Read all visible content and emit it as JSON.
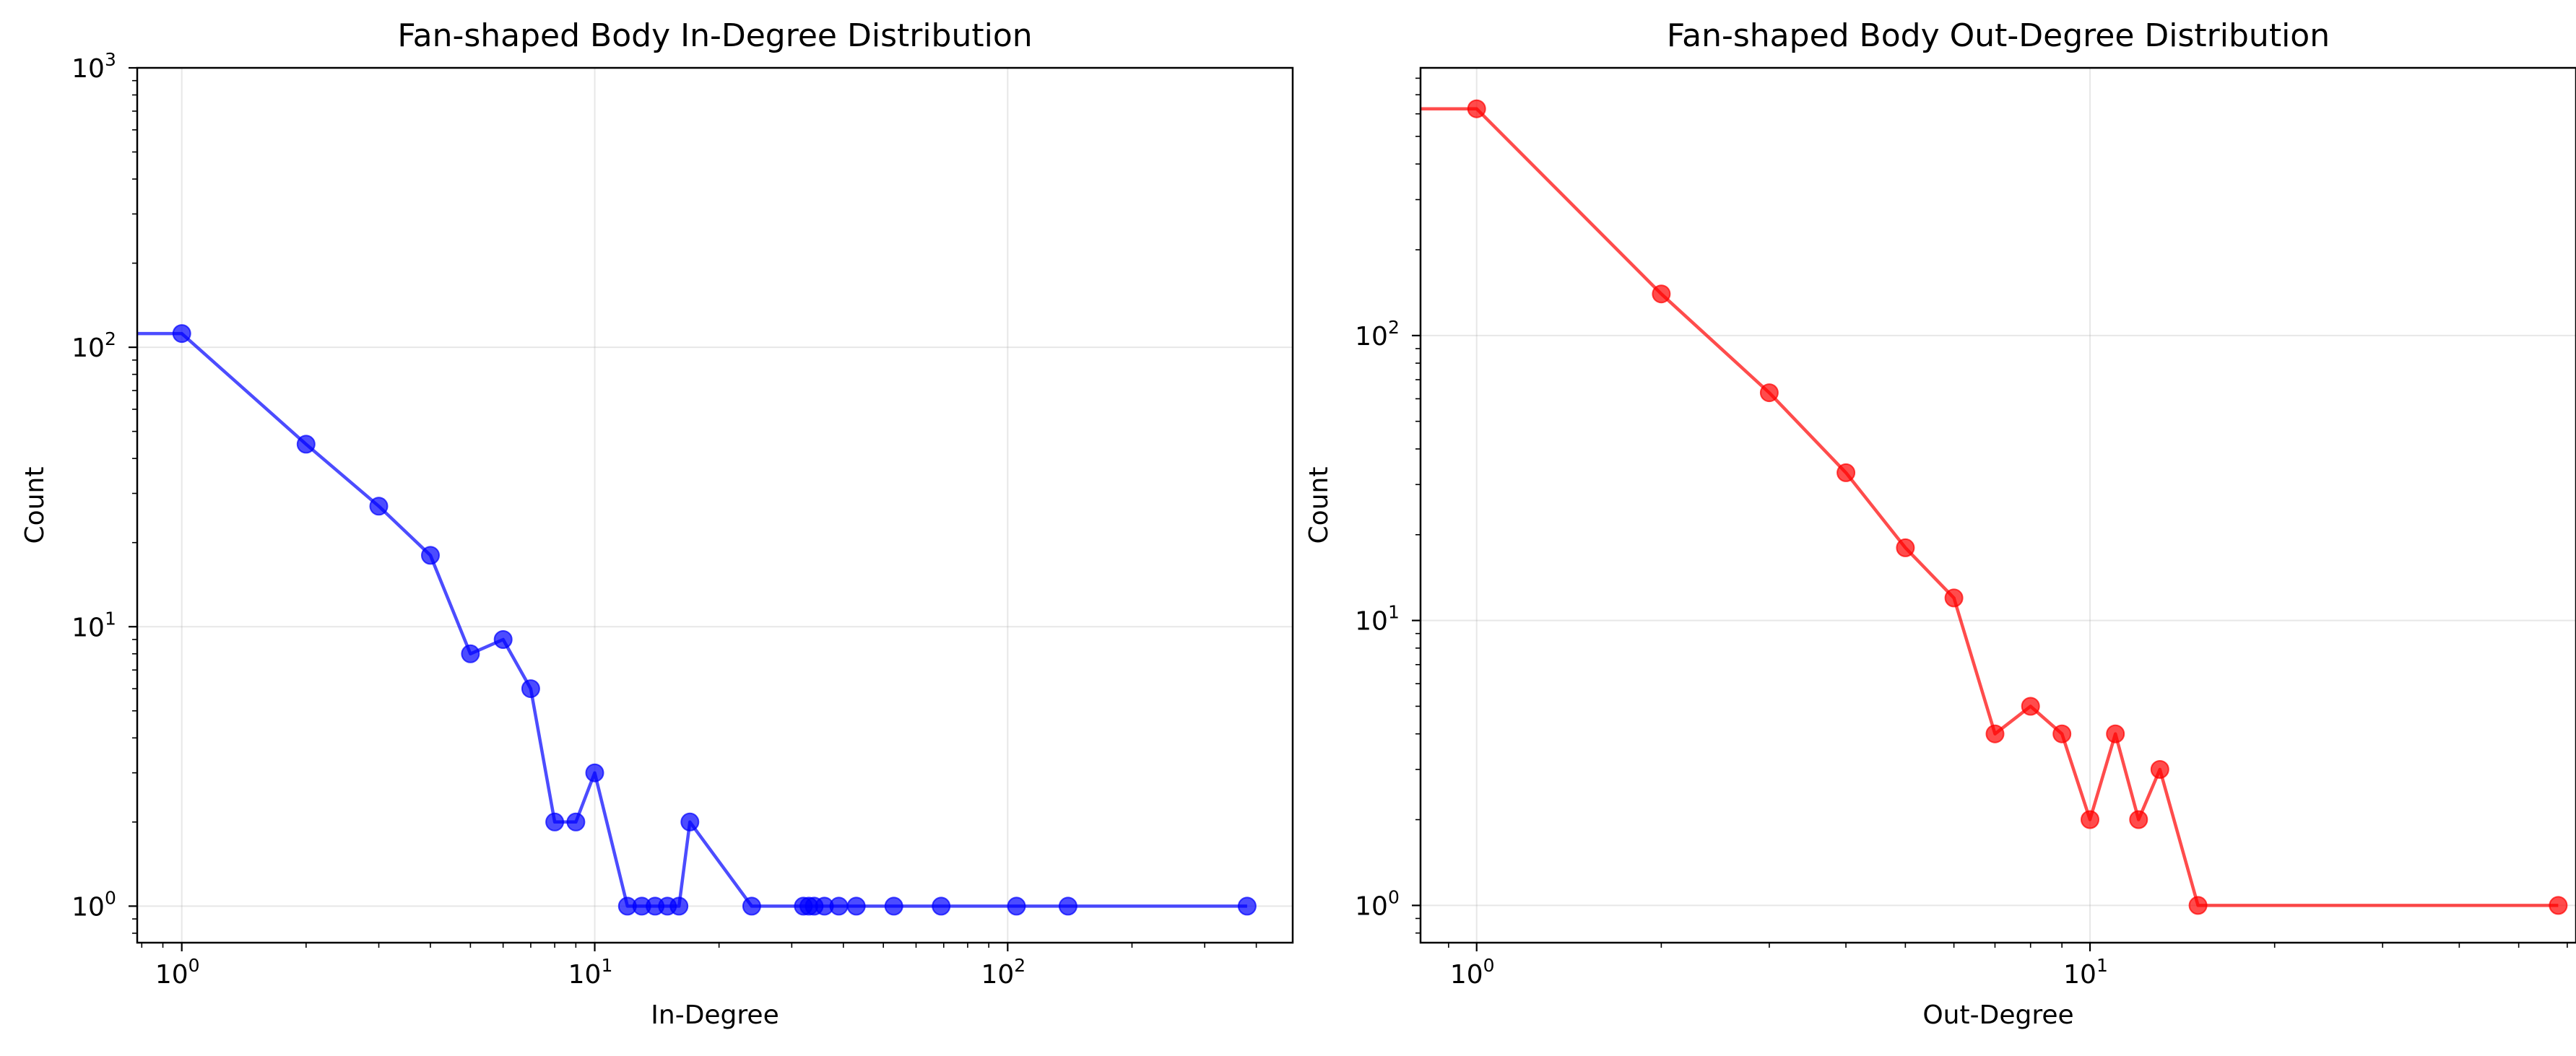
{
  "chart_data": [
    {
      "type": "line",
      "title": "Fan-shaped Body In-Degree Distribution",
      "xlabel": "In-Degree",
      "ylabel": "Count",
      "xscale": "log",
      "yscale": "log",
      "xlim": [
        0.78,
        490
      ],
      "ylim": [
        0.74,
        1000
      ],
      "grid": true,
      "xticks": [
        {
          "base": "10",
          "exp": "0",
          "value": 1
        },
        {
          "base": "10",
          "exp": "1",
          "value": 10
        },
        {
          "base": "10",
          "exp": "2",
          "value": 100
        }
      ],
      "yticks": [
        {
          "base": "10",
          "exp": "0",
          "value": 1
        },
        {
          "base": "10",
          "exp": "1",
          "value": 10
        },
        {
          "base": "10",
          "exp": "2",
          "value": 100
        },
        {
          "base": "10",
          "exp": "3",
          "value": 1000
        }
      ],
      "series": [
        {
          "color": "#0000ff",
          "x": [
            0,
            1,
            2,
            3,
            4,
            5,
            6,
            7,
            8,
            9,
            10,
            12,
            13,
            14,
            15,
            16,
            17,
            24,
            32,
            33,
            34,
            36,
            39,
            43,
            53,
            69,
            105,
            140,
            380
          ],
          "y": [
            112,
            112,
            45,
            27,
            18,
            8,
            9,
            6,
            2,
            2,
            3,
            1,
            1,
            1,
            1,
            1,
            2,
            1,
            1,
            1,
            1,
            1,
            1,
            1,
            1,
            1,
            1,
            1,
            1
          ]
        }
      ]
    },
    {
      "type": "line",
      "title": "Fan-shaped Body Out-Degree Distribution",
      "xlabel": "Out-Degree",
      "ylabel": "Count",
      "xscale": "log",
      "yscale": "log",
      "xlim": [
        0.81,
        62
      ],
      "ylim": [
        0.74,
        870
      ],
      "grid": true,
      "xticks": [
        {
          "base": "10",
          "exp": "0",
          "value": 1
        },
        {
          "base": "10",
          "exp": "1",
          "value": 10
        }
      ],
      "yticks": [
        {
          "base": "10",
          "exp": "0",
          "value": 1
        },
        {
          "base": "10",
          "exp": "1",
          "value": 10
        },
        {
          "base": "10",
          "exp": "2",
          "value": 100
        }
      ],
      "series": [
        {
          "color": "#ff0000",
          "x": [
            0,
            1,
            2,
            3,
            4,
            5,
            6,
            7,
            8,
            9,
            10,
            11,
            12,
            13,
            15,
            58
          ],
          "y": [
            625,
            625,
            140,
            63,
            33,
            18,
            12,
            4,
            5,
            4,
            2,
            4,
            2,
            3,
            1,
            1
          ]
        }
      ]
    }
  ]
}
